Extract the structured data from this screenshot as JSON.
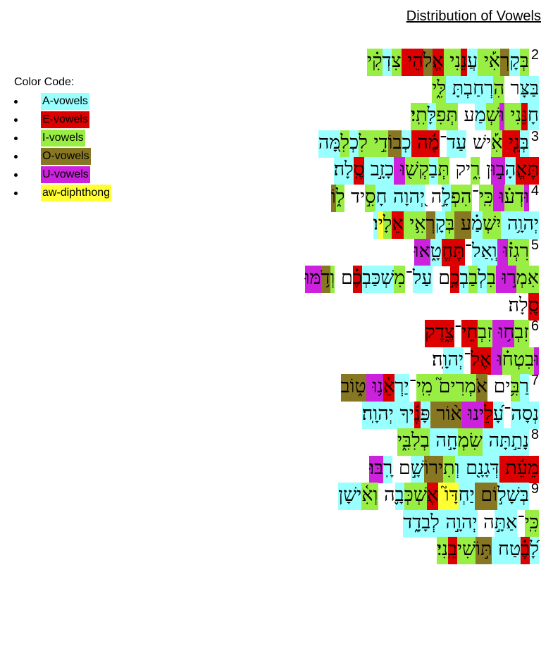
{
  "title": "Distribution of Vowels",
  "legend": {
    "heading": "Color Code:",
    "items": [
      {
        "label": "A-vowels",
        "color": "#99ffff"
      },
      {
        "label": "E-vowels",
        "color": "#dd0000"
      },
      {
        "label": "I-vowels",
        "color": "#99ee44"
      },
      {
        "label": "O-vowels",
        "color": "#887722"
      },
      {
        "label": "U-vowels",
        "color": "#cc22dd"
      },
      {
        "label": "aw-diphthong",
        "color": "#ffff33"
      }
    ]
  },
  "psalm": {
    "lines": [
      {
        "verse": "2",
        "segments": [
          {
            "t": "בְּ",
            "v": "I"
          },
          {
            "t": "קָ",
            "v": "A"
          },
          {
            "t": "רְ",
            "v": "O"
          },
          {
            "t": "אִ֡י ",
            "v": "I"
          },
          {
            "t": "עֲ",
            "v": "A"
          },
          {
            "t": "נֵ",
            "v": "E"
          },
          {
            "t": "נִי ",
            "v": "I"
          },
          {
            "t": "אֱ",
            "v": "E"
          },
          {
            "t": "לֹ",
            "v": "O"
          },
          {
            "t": "הֵי ",
            "v": "E"
          },
          {
            "t": "צִ",
            "v": "I"
          },
          {
            "t": "דְ",
            "v": "A"
          },
          {
            "t": "קִ֗י",
            "v": "I"
          }
        ]
      },
      {
        "verse": "",
        "segments": [
          {
            "t": "בַּ",
            "v": "A"
          },
          {
            "t": "צָּ",
            "v": "A"
          },
          {
            "t": "ר ",
            "v": ""
          },
          {
            "t": "הִ",
            "v": "I"
          },
          {
            "t": "רְ",
            "v": "A"
          },
          {
            "t": "חַ",
            "v": "A"
          },
          {
            "t": "בְ",
            "v": "A"
          },
          {
            "t": "תָּ ",
            "v": "A"
          },
          {
            "t": "לִּ֑י",
            "v": "I"
          }
        ]
      },
      {
        "verse": "",
        "segments": [
          {
            "t": "חָ",
            "v": "A"
          },
          {
            "t": "נֵּ",
            "v": "E"
          },
          {
            "t": "נִי ",
            "v": "I"
          },
          {
            "t": "וּ",
            "v": "U"
          },
          {
            "t": "שְׁ",
            "v": "I"
          },
          {
            "t": "מַ",
            "v": "A"
          },
          {
            "t": "ע ",
            "v": ""
          },
          {
            "t": "תְּ",
            "v": "I"
          },
          {
            "t": "פִ",
            "v": "I"
          },
          {
            "t": "לָּ",
            "v": "A"
          },
          {
            "t": "תִֽי׃",
            "v": "I"
          }
        ]
      },
      {
        "verse": "3",
        "segments": [
          {
            "t": "בְּ",
            "v": "A"
          },
          {
            "t": "נֵ֤י ",
            "v": "E"
          },
          {
            "t": "אִ֡",
            "v": "I"
          },
          {
            "t": "ישׁ ",
            "v": ""
          },
          {
            "t": "עַד",
            "v": "A"
          },
          {
            "t": "־",
            "v": ""
          },
          {
            "t": "מֶ֬ה ",
            "v": "E"
          },
          {
            "t": "כְ",
            "v": "A"
          },
          {
            "t": "בוֹ",
            "v": "O"
          },
          {
            "t": "דִ֣י ",
            "v": "I"
          },
          {
            "t": "לִ",
            "v": "I"
          },
          {
            "t": "כְ",
            "v": "A"
          },
          {
            "t": "לִ",
            "v": "I"
          },
          {
            "t": "מָּ֭ה",
            "v": "A"
          }
        ]
      },
      {
        "verse": "",
        "segments": [
          {
            "t": "תֶּ",
            "v": "E"
          },
          {
            "t": "אֱ",
            "v": "E"
          },
          {
            "t": "הָ",
            "v": "A"
          },
          {
            "t": "ב֣וּ",
            "v": "U"
          },
          {
            "t": "ן ",
            "v": ""
          },
          {
            "t": "רִ֑",
            "v": "I"
          },
          {
            "t": "יק ",
            "v": ""
          },
          {
            "t": "תְּ",
            "v": "I"
          },
          {
            "t": "בַ",
            "v": "A"
          },
          {
            "t": "קְשׁ֖",
            "v": "I"
          },
          {
            "t": "וּ ",
            "v": "U"
          },
          {
            "t": "כָ",
            "v": "A"
          },
          {
            "t": "זָ֣ב ",
            "v": "A"
          },
          {
            "t": "סֶֽ",
            "v": "E"
          },
          {
            "t": "לָה׃",
            "v": "A"
          }
        ]
      },
      {
        "verse": "4",
        "segments": [
          {
            "t": "וּ",
            "v": "U"
          },
          {
            "t": "דְע֗",
            "v": "I"
          },
          {
            "t": "וּ ",
            "v": "U"
          },
          {
            "t": "כִּֽי",
            "v": "I"
          },
          {
            "t": "־",
            "v": ""
          },
          {
            "t": "הִפְ",
            "v": "I"
          },
          {
            "t": "לָ֣",
            "v": "A"
          },
          {
            "t": "ה ",
            "v": ""
          },
          {
            "t": "יְ֭",
            "v": "A"
          },
          {
            "t": "הוָה ",
            "v": "A"
          },
          {
            "t": "חָ",
            "v": "A"
          },
          {
            "t": "סִ֣",
            "v": "I"
          },
          {
            "t": "יד ",
            "v": ""
          },
          {
            "t": "ל֑",
            "v": "I"
          },
          {
            "t": "וֹ",
            "v": "O"
          }
        ]
      },
      {
        "verse": "",
        "segments": [
          {
            "t": "יְהוָ֥ה ",
            "v": "A"
          },
          {
            "t": "יִ",
            "v": "I"
          },
          {
            "t": "שְׁ",
            "v": "I"
          },
          {
            "t": "מַ֗",
            "v": "A"
          },
          {
            "t": "ע ",
            "v": "O"
          },
          {
            "t": "בְּ",
            "v": "I"
          },
          {
            "t": "קָ",
            "v": "A"
          },
          {
            "t": "רְ",
            "v": "O"
          },
          {
            "t": "אִ֥י ",
            "v": "I"
          },
          {
            "t": "אֵ",
            "v": "E"
          },
          {
            "t": "לָ",
            "v": "I"
          },
          {
            "t": "י",
            "v": "AW"
          },
          {
            "t": "ו׃",
            "v": "A"
          }
        ]
      },
      {
        "verse": "5",
        "segments": [
          {
            "t": "רִ",
            "v": "I"
          },
          {
            "t": "גְז֗",
            "v": "I"
          },
          {
            "t": "וּ ",
            "v": "U"
          },
          {
            "t": "וְֽ",
            "v": "A"
          },
          {
            "t": "אַל",
            "v": "A"
          },
          {
            "t": "־",
            "v": ""
          },
          {
            "t": "תֶּ",
            "v": "E"
          },
          {
            "t": "חֱ",
            "v": "E"
          },
          {
            "t": "טָ֑",
            "v": "A"
          },
          {
            "t": "אוּ",
            "v": "U"
          }
        ]
      },
      {
        "verse": "",
        "segments": [
          {
            "t": "אִמְ",
            "v": "I"
          },
          {
            "t": "ר֣וּ ",
            "v": "U"
          },
          {
            "t": "בִ",
            "v": "I"
          },
          {
            "t": "לְ",
            "v": "A"
          },
          {
            "t": "בַ",
            "v": "I"
          },
          {
            "t": "בְ",
            "v": "A"
          },
          {
            "t": "כֶ֣",
            "v": "E"
          },
          {
            "t": "ם ",
            "v": ""
          },
          {
            "t": "עַל",
            "v": "A"
          },
          {
            "t": "־",
            "v": ""
          },
          {
            "t": "מִ",
            "v": "I"
          },
          {
            "t": "שְׁ",
            "v": "A"
          },
          {
            "t": "כַּ",
            "v": "A"
          },
          {
            "t": "בְ",
            "v": "A"
          },
          {
            "t": "כֶ֗",
            "v": "E"
          },
          {
            "t": "ם ",
            "v": ""
          },
          {
            "t": "וְ",
            "v": "I"
          },
          {
            "t": "דֹ֥",
            "v": "O"
          },
          {
            "t": "מּוּ",
            "v": "U"
          }
        ]
      },
      {
        "verse": "",
        "segments": [
          {
            "t": "סֶֽ",
            "v": "E"
          },
          {
            "t": "לָה׃",
            "v": ""
          }
        ]
      },
      {
        "verse": "6",
        "segments": [
          {
            "t": "זִבְ",
            "v": "I"
          },
          {
            "t": "ח֥",
            "v": "U"
          },
          {
            "t": "וּ ",
            "v": "U"
          },
          {
            "t": "זִ",
            "v": "I"
          },
          {
            "t": "בְ",
            "v": "I"
          },
          {
            "t": "חֵי",
            "v": "E"
          },
          {
            "t": "־",
            "v": ""
          },
          {
            "t": "צֶ֑",
            "v": "E"
          },
          {
            "t": "דֶק",
            "v": "E"
          }
        ]
      },
      {
        "verse": "",
        "segments": [
          {
            "t": "וּ",
            "v": "U"
          },
          {
            "t": "בִ",
            "v": "I"
          },
          {
            "t": "טְח֗",
            "v": "I"
          },
          {
            "t": "וּ ",
            "v": "U"
          },
          {
            "t": "אֶל",
            "v": "E"
          },
          {
            "t": "־",
            "v": ""
          },
          {
            "t": "יְ",
            "v": "A"
          },
          {
            "t": "הוָֽ",
            "v": "A"
          },
          {
            "t": "ה׃",
            "v": ""
          }
        ]
      },
      {
        "verse": "7",
        "segments": [
          {
            "t": "רַ",
            "v": "A"
          },
          {
            "t": "בִּ֥",
            "v": "I"
          },
          {
            "t": "ים ",
            "v": ""
          },
          {
            "t": "אֹ",
            "v": "O"
          },
          {
            "t": "מְ",
            "v": "I"
          },
          {
            "t": "רִים֮ ",
            "v": "I"
          },
          {
            "t": "מִֽי",
            "v": "I"
          },
          {
            "t": "־",
            "v": ""
          },
          {
            "t": "יַ",
            "v": "A"
          },
          {
            "t": "רְ",
            "v": "A"
          },
          {
            "t": "אֵ֫",
            "v": "E"
          },
          {
            "t": "נ֥וּ ",
            "v": "U"
          },
          {
            "t": "ט֑",
            "v": "O"
          },
          {
            "t": "וֹב",
            "v": "O"
          }
        ]
      },
      {
        "verse": "",
        "segments": [
          {
            "t": "נְ",
            "v": "A"
          },
          {
            "t": "סָה",
            "v": "A"
          },
          {
            "t": "־",
            "v": ""
          },
          {
            "t": "עָ֝",
            "v": "A"
          },
          {
            "t": "לֵ",
            "v": "E"
          },
          {
            "t": "ינוּ ",
            "v": "U"
          },
          {
            "t": "א֨",
            "v": "O"
          },
          {
            "t": "וֹר ",
            "v": "O"
          },
          {
            "t": "פָּ",
            "v": "A"
          },
          {
            "t": "נֶ֬",
            "v": "E"
          },
          {
            "t": "יךָ ",
            "v": "A"
          },
          {
            "t": "יְהוָֽה׃",
            "v": "A"
          }
        ]
      },
      {
        "verse": "8",
        "segments": [
          {
            "t": "נָ",
            "v": "A"
          },
          {
            "t": "תַ֣",
            "v": "A"
          },
          {
            "t": "תָּה ",
            "v": "A"
          },
          {
            "t": "שִׂ",
            "v": "I"
          },
          {
            "t": "מְ",
            "v": "I"
          },
          {
            "t": "חָ֣",
            "v": "A"
          },
          {
            "t": "ה ",
            "v": "A"
          },
          {
            "t": "בְ",
            "v": "I"
          },
          {
            "t": "לִ",
            "v": "I"
          },
          {
            "t": "בִּ֑י",
            "v": "I"
          }
        ]
      },
      {
        "verse": "",
        "segments": [
          {
            "t": "מֵ",
            "v": "E"
          },
          {
            "t": "עֵ֬ת ",
            "v": "E"
          },
          {
            "t": "דְּ",
            "v": "A"
          },
          {
            "t": "גָ",
            "v": "A"
          },
          {
            "t": "נָ֖",
            "v": "A"
          },
          {
            "t": "ם ",
            "v": "A"
          },
          {
            "t": "וְ",
            "v": "A"
          },
          {
            "t": "תִ",
            "v": "I"
          },
          {
            "t": "ירוֹ",
            "v": "O"
          },
          {
            "t": "שָׁ֣",
            "v": "A"
          },
          {
            "t": "ם ",
            "v": ""
          },
          {
            "t": "רָֽ",
            "v": "A"
          },
          {
            "t": "בּוּ׃",
            "v": "U"
          }
        ]
      },
      {
        "verse": "9",
        "segments": [
          {
            "t": "בְּ",
            "v": "A"
          },
          {
            "t": "שָׁ",
            "v": "A"
          },
          {
            "t": "ל֣",
            "v": "A"
          },
          {
            "t": "וֹם ",
            "v": "O"
          },
          {
            "t": "יַ",
            "v": "A"
          },
          {
            "t": "חְ",
            "v": "A"
          },
          {
            "t": "דָּו֮ ",
            "v": "AW"
          },
          {
            "t": "אֶ",
            "v": "E"
          },
          {
            "t": "שְׁ",
            "v": "I"
          },
          {
            "t": "כְּ",
            "v": "I"
          },
          {
            "t": "בָ֪",
            "v": "A"
          },
          {
            "t": "ה ",
            "v": ""
          },
          {
            "t": "וְ",
            "v": "I"
          },
          {
            "t": "אִ֫",
            "v": "I"
          },
          {
            "t": "ישָׁ",
            "v": "A"
          },
          {
            "t": "ן",
            "v": "A"
          }
        ]
      },
      {
        "verse": "",
        "segments": [
          {
            "t": "כִּֽי",
            "v": "I"
          },
          {
            "t": "־",
            "v": ""
          },
          {
            "t": "אַ",
            "v": "A"
          },
          {
            "t": "תָּ֣",
            "v": "A"
          },
          {
            "t": "ה ",
            "v": ""
          },
          {
            "t": "יְהוָ֣ה ",
            "v": "A"
          },
          {
            "t": "לְ",
            "v": "A"
          },
          {
            "t": "בָ",
            "v": "A"
          },
          {
            "t": "דָ֑",
            "v": "A"
          },
          {
            "t": "ד",
            "v": "A"
          }
        ]
      },
      {
        "verse": "",
        "segments": [
          {
            "t": "לָ֝",
            "v": "A"
          },
          {
            "t": "בֶ֗",
            "v": "E"
          },
          {
            "t": "טַח ",
            "v": "A"
          },
          {
            "t": "תּ֣",
            "v": "O"
          },
          {
            "t": "וֹ",
            "v": "O"
          },
          {
            "t": "שִׁי",
            "v": "I"
          },
          {
            "t": "בֵֽ",
            "v": "E"
          },
          {
            "t": "נִי׃",
            "v": "I"
          }
        ]
      }
    ]
  }
}
